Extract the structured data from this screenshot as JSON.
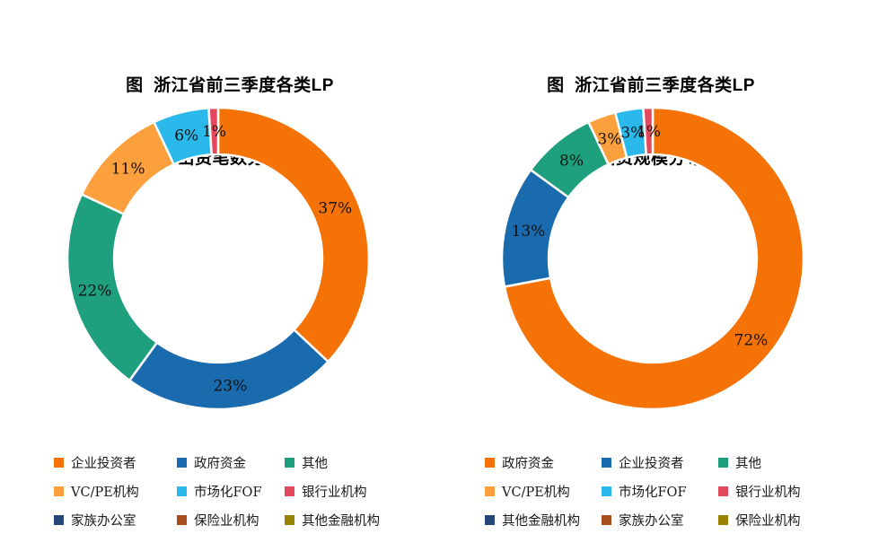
{
  "page": {
    "background": "#ffffff",
    "text_color": "#000000",
    "label_unit": "%"
  },
  "chart_data": [
    {
      "type": "pie",
      "donut": true,
      "inner_radius_ratio": 0.69,
      "start_angle": "top",
      "direction": "clockwise",
      "legend_position": "bottom",
      "title": "图  浙江省前三季度各类LP出资笔数分布",
      "title_lines": [
        "图  浙江省前三季度各类LP",
        "出资笔数分布"
      ],
      "categories": [
        "企业投资者",
        "政府资金",
        "其他",
        "VC/PE机构",
        "市场化FOF",
        "银行业机构",
        "家族办公室",
        "保险业机构",
        "其他金融机构"
      ],
      "values": [
        37,
        23,
        22,
        11,
        6,
        1,
        0,
        0,
        0
      ],
      "labels": [
        "37%",
        "23%",
        "22%",
        "11%",
        "6%",
        "1%",
        "",
        "",
        ""
      ],
      "colors": [
        "#F57207",
        "#1A6AAE",
        "#1E9F7D",
        "#FBA03C",
        "#2BB9EC",
        "#E2495E",
        "#254679",
        "#A64E1E",
        "#998200"
      ]
    },
    {
      "type": "pie",
      "donut": true,
      "inner_radius_ratio": 0.69,
      "start_angle": "top",
      "direction": "clockwise",
      "legend_position": "bottom",
      "title": "图  浙江省前三季度各类LP出资规模分布",
      "title_lines": [
        "图  浙江省前三季度各类LP",
        "出资规模分布"
      ],
      "categories": [
        "政府资金",
        "企业投资者",
        "其他",
        "VC/PE机构",
        "市场化FOF",
        "银行业机构",
        "其他金融机构",
        "家族办公室",
        "保险业机构"
      ],
      "values": [
        72,
        13,
        8,
        3,
        3,
        1,
        0,
        0,
        0
      ],
      "labels": [
        "72%",
        "13%",
        "8%",
        "3%",
        "3%",
        "1%",
        "",
        "",
        ""
      ],
      "colors": [
        "#F57207",
        "#1A6AAE",
        "#1E9F7D",
        "#FBA03C",
        "#2BB9EC",
        "#E2495E",
        "#254679",
        "#A64E1E",
        "#998200"
      ]
    }
  ]
}
